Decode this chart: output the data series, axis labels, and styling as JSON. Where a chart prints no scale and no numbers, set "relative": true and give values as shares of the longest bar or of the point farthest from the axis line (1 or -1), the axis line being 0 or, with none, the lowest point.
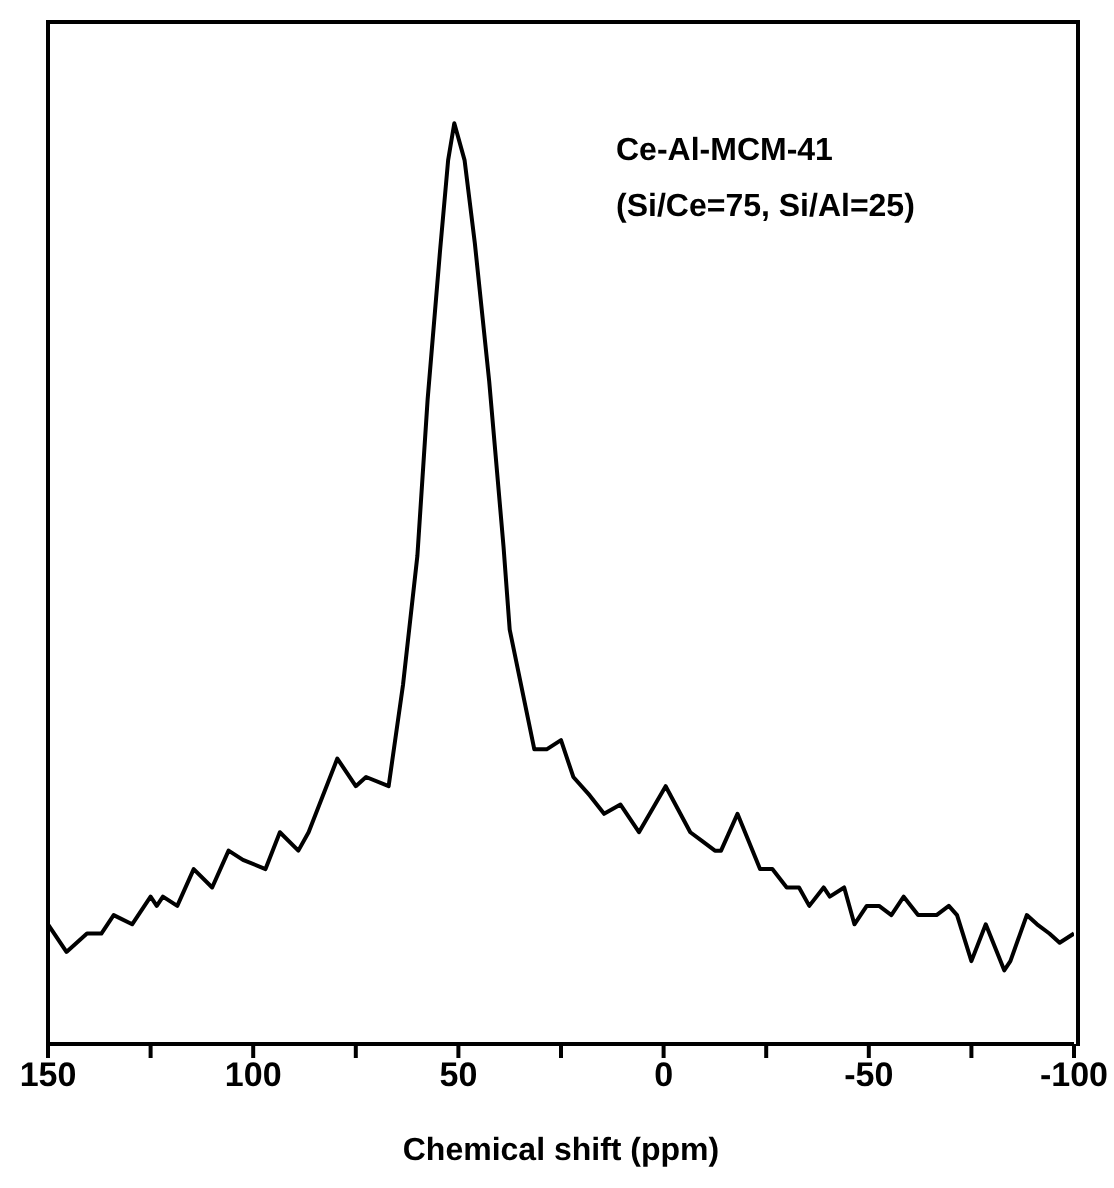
{
  "chart_data": {
    "type": "line",
    "xlabel": "Chemical shift (ppm)",
    "relative": true,
    "marker": "none",
    "line_style": "solid",
    "annotations": [
      "Ce-Al-MCM-41",
      "(Si/Ce=75, Si/Al=25)"
    ],
    "xlim": [
      150,
      -100
    ],
    "xticks": [
      150,
      {
        "value": 125,
        "label": null
      },
      100,
      {
        "value": 75,
        "label": null
      },
      50,
      {
        "value": 25,
        "label": null
      },
      0,
      {
        "value": -25,
        "label": null
      },
      -50,
      {
        "value": -75,
        "label": null
      },
      -100
    ],
    "series": [
      {
        "color": "#000000",
        "x": [
          150,
          145.5,
          140.5,
          137,
          134,
          129.5,
          125,
          123.5,
          122,
          118.5,
          114.5,
          110,
          106,
          102.5,
          97,
          93.5,
          89,
          86.5,
          79.5,
          75,
          72.5,
          67,
          63.5,
          60,
          57.5,
          54.5,
          52.5,
          51,
          48.5,
          46,
          42.5,
          39,
          37.5,
          31.5,
          28.5,
          25,
          22,
          18,
          14.5,
          10.5,
          6,
          -0.5,
          -6.5,
          -9.5,
          -12.5,
          -14,
          -18,
          -23.5,
          -26.5,
          -30,
          -33,
          -35.5,
          -39,
          -40.5,
          -44,
          -46.5,
          -49.5,
          -52.5,
          -55.5,
          -58.5,
          -62,
          -66.5,
          -69.5,
          -71.5,
          -75,
          -78.5,
          -83,
          -84.5,
          -88.5,
          -91,
          -94,
          -96.5,
          -100
        ],
        "values": [
          0.13,
          0.1,
          0.12,
          0.12,
          0.14,
          0.13,
          0.16,
          0.15,
          0.16,
          0.15,
          0.19,
          0.17,
          0.21,
          0.2,
          0.19,
          0.23,
          0.21,
          0.23,
          0.31,
          0.28,
          0.29,
          0.28,
          0.39,
          0.53,
          0.7,
          0.86,
          0.96,
          1,
          0.96,
          0.87,
          0.72,
          0.54,
          0.45,
          0.32,
          0.32,
          0.33,
          0.29,
          0.27,
          0.25,
          0.26,
          0.23,
          0.28,
          0.23,
          0.22,
          0.21,
          0.21,
          0.25,
          0.19,
          0.19,
          0.17,
          0.17,
          0.15,
          0.17,
          0.16,
          0.17,
          0.13,
          0.15,
          0.15,
          0.14,
          0.16,
          0.14,
          0.14,
          0.15,
          0.14,
          0.09,
          0.13,
          0.08,
          0.09,
          0.14,
          0.13,
          0.12,
          0.11,
          0.12
        ]
      }
    ]
  }
}
